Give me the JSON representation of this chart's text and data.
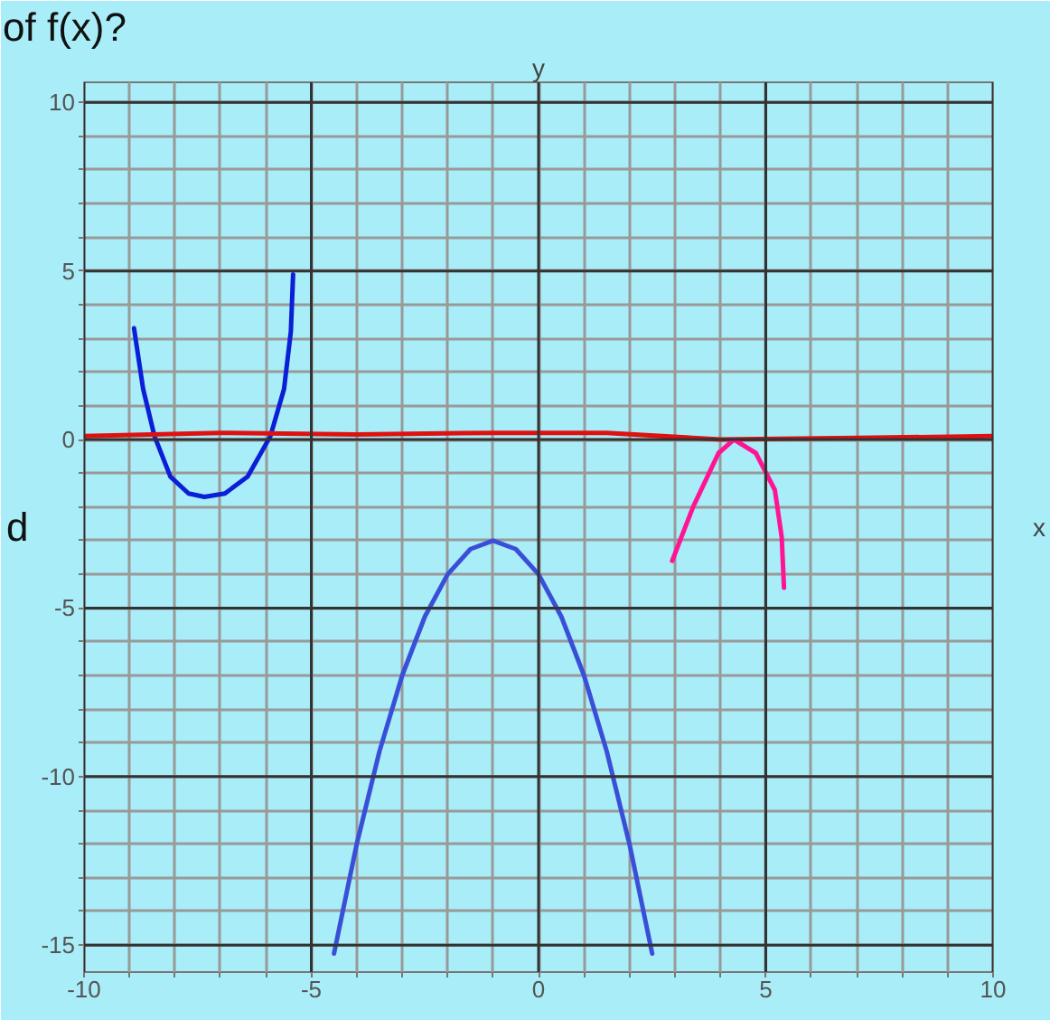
{
  "chart_data": {
    "type": "line",
    "xlabel": "x",
    "ylabel": "y",
    "annotations": [
      "of f(x)?",
      "d"
    ],
    "xlim": [
      -10,
      10
    ],
    "ylim": [
      -15.8,
      10.6
    ],
    "xticks": [
      -10,
      {
        "value": -9,
        "label": null
      },
      {
        "value": -8,
        "label": null
      },
      {
        "value": -7,
        "label": null
      },
      {
        "value": -6,
        "label": null
      },
      -5,
      {
        "value": -4,
        "label": null
      },
      {
        "value": -3,
        "label": null
      },
      {
        "value": -2,
        "label": null
      },
      {
        "value": -1,
        "label": null
      },
      0,
      {
        "value": 1,
        "label": null
      },
      {
        "value": 2,
        "label": null
      },
      {
        "value": 3,
        "label": null
      },
      {
        "value": 4,
        "label": null
      },
      5,
      {
        "value": 6,
        "label": null
      },
      {
        "value": 7,
        "label": null
      },
      {
        "value": 8,
        "label": null
      },
      {
        "value": 9,
        "label": null
      },
      10
    ],
    "yticks": [
      -15,
      {
        "value": -14,
        "label": null
      },
      {
        "value": -13,
        "label": null
      },
      {
        "value": -12,
        "label": null
      },
      {
        "value": -11,
        "label": null
      },
      -10,
      {
        "value": -9,
        "label": null
      },
      {
        "value": -8,
        "label": null
      },
      {
        "value": -7,
        "label": null
      },
      {
        "value": -6,
        "label": null
      },
      -5,
      {
        "value": -4,
        "label": null
      },
      {
        "value": -3,
        "label": null
      },
      {
        "value": -2,
        "label": null
      },
      {
        "value": -1,
        "label": null
      },
      0,
      {
        "value": 1,
        "label": null
      },
      {
        "value": 2,
        "label": null
      },
      {
        "value": 3,
        "label": null
      },
      {
        "value": 4,
        "label": null
      },
      5,
      {
        "value": 6,
        "label": null
      },
      {
        "value": 7,
        "label": null
      },
      {
        "value": 8,
        "label": null
      },
      {
        "value": 9,
        "label": null
      },
      10
    ],
    "grid": true,
    "marker": "none",
    "line_style": "solid",
    "series": [
      {
        "color": "#3a4fd8",
        "x": [
          -4.5,
          -4,
          -3.5,
          -3,
          -2.5,
          -2,
          -1.5,
          -1,
          -0.5,
          0,
          0.5,
          1,
          1.5,
          2,
          2.5
        ],
        "values": [
          -15.25,
          -12,
          -9.25,
          -7,
          -5.25,
          -4,
          -3.25,
          -3,
          -3.25,
          -4,
          -5.25,
          -7,
          -9.25,
          -12,
          -15.25
        ]
      },
      {
        "color": "#0a1fd6",
        "x": [
          -8.9,
          -8.7,
          -8.45,
          -8.1,
          -7.7,
          -7.35,
          -6.9,
          -6.4,
          -5.9,
          -5.6,
          -5.45,
          -5.4
        ],
        "values": [
          3.3,
          1.5,
          0.1,
          -1.1,
          -1.6,
          -1.7,
          -1.6,
          -1.1,
          0.1,
          1.5,
          3.2,
          4.9
        ]
      },
      {
        "color": "#e01010",
        "x": [
          -10,
          -7,
          -4,
          -1,
          1.5,
          4,
          7,
          10
        ],
        "values": [
          0.1,
          0.2,
          0.15,
          0.2,
          0.2,
          0,
          0.05,
          0.1
        ]
      },
      {
        "color": "#ff1493",
        "x": [
          2.94,
          3.4,
          3.96,
          4.3,
          4.78,
          5.2,
          5.35,
          5.4
        ],
        "values": [
          -3.6,
          -2,
          -0.4,
          0,
          -0.4,
          -1.5,
          -2.9,
          -4.4
        ]
      }
    ]
  }
}
